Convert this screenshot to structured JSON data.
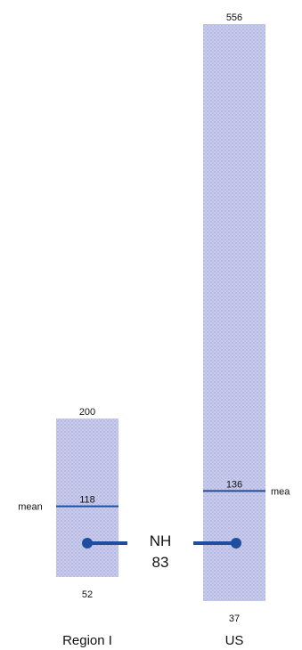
{
  "chart_data": {
    "type": "range-bar",
    "bar_color": "#c9cbec",
    "bar_pattern_color": "#aab0dc",
    "line_color": "#1f4ea0",
    "regions": [
      {
        "name": "Region I",
        "max": 200,
        "min": 52,
        "mean": 118,
        "mean_label": "mean"
      },
      {
        "name": "US",
        "max": 556,
        "min": 37,
        "mean": 136,
        "mean_label": "mea"
      }
    ],
    "marker": {
      "label": "NH",
      "value": 83
    }
  }
}
